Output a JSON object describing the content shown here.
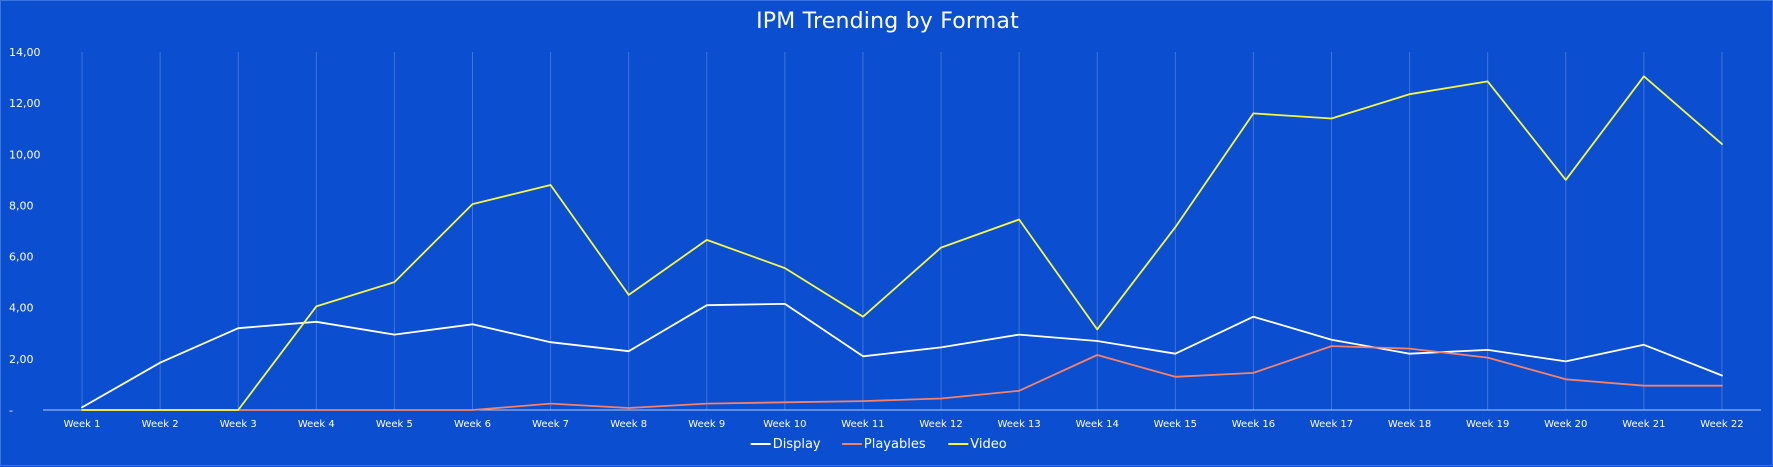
{
  "chart_data": {
    "type": "line",
    "title": "IPM Trending by Format",
    "xlabel": "",
    "ylabel": "",
    "categories": [
      "Week 1",
      "Week 2",
      "Week 3",
      "Week 4",
      "Week 5",
      "Week 6",
      "Week 7",
      "Week 8",
      "Week 9",
      "Week 10",
      "Week 11",
      "Week 12",
      "Week 13",
      "Week 14",
      "Week 15",
      "Week 16",
      "Week 17",
      "Week 18",
      "Week 19",
      "Week 20",
      "Week 21",
      "Week 22"
    ],
    "ylim": [
      0,
      14
    ],
    "yticks": [
      0,
      2,
      4,
      6,
      8,
      10,
      12,
      14
    ],
    "ytick_labels": [
      "-",
      "2,00",
      "4,00",
      "6,00",
      "8,00",
      "10,00",
      "12,00",
      "14,00"
    ],
    "grid": "vertical",
    "legend_position": "bottom",
    "series": [
      {
        "name": "Display",
        "color": "#ffffff",
        "values": [
          0.1,
          1.85,
          3.2,
          3.45,
          2.95,
          3.35,
          2.65,
          2.3,
          4.1,
          4.15,
          2.1,
          2.45,
          2.95,
          2.7,
          2.2,
          3.65,
          2.75,
          2.2,
          2.35,
          1.9,
          2.55,
          1.35
        ]
      },
      {
        "name": "Playables",
        "color": "#f4826a",
        "values": [
          0,
          0,
          0,
          0,
          0,
          0,
          0.25,
          0.08,
          0.25,
          0.3,
          0.35,
          0.45,
          0.75,
          2.15,
          1.3,
          1.45,
          2.5,
          2.4,
          2.05,
          1.2,
          0.95,
          0.95
        ]
      },
      {
        "name": "Video",
        "color": "#f5f54a",
        "values": [
          0,
          0,
          0,
          4.05,
          5.0,
          8.05,
          8.8,
          4.5,
          6.65,
          5.55,
          3.65,
          6.35,
          7.45,
          3.15,
          7.15,
          11.6,
          11.4,
          12.35,
          12.85,
          9.0,
          13.05,
          10.4
        ]
      }
    ]
  }
}
